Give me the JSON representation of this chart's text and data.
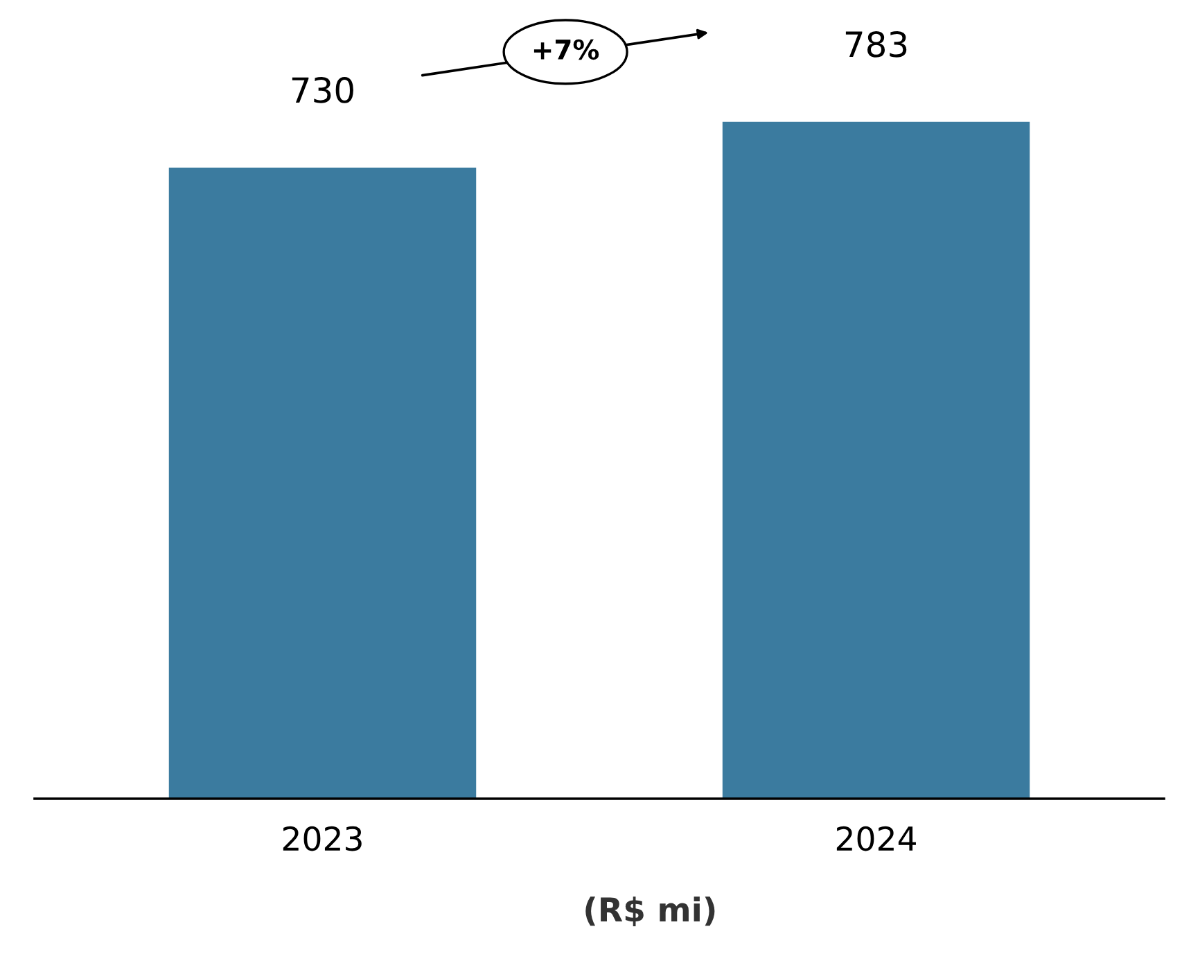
{
  "chart_data": {
    "type": "bar",
    "categories": [
      "2023",
      "2024"
    ],
    "values": [
      730,
      783
    ],
    "color": "#3b7b9f",
    "data_labels": true,
    "tick_labels": "x",
    "annotations": [
      "+7%",
      "(R$ mi)"
    ]
  }
}
